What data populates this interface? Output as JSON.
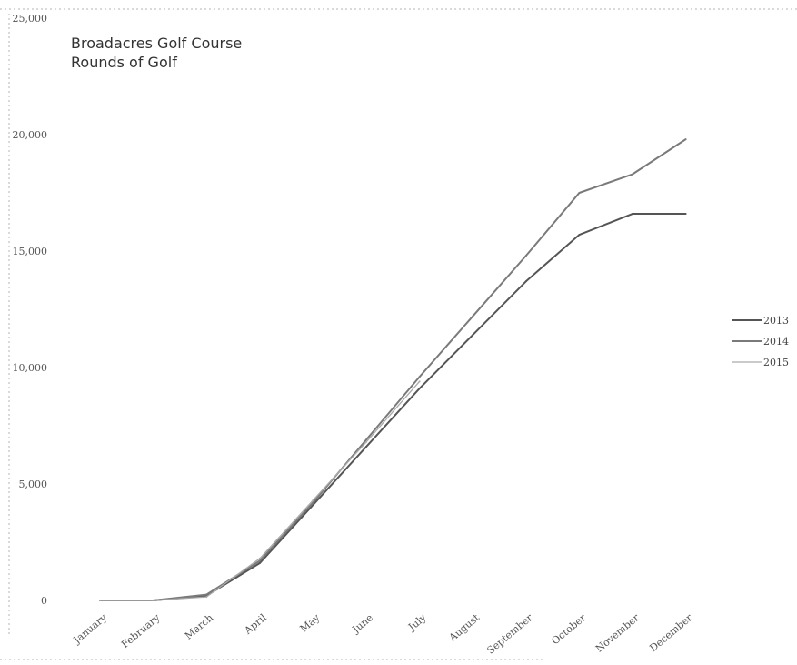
{
  "chart_data": {
    "type": "line",
    "title": "Broadacres Golf Course",
    "subtitle": "Rounds of Golf",
    "xlabel": "",
    "ylabel": "",
    "categories": [
      "January",
      "February",
      "March",
      "April",
      "May",
      "June",
      "July",
      "August",
      "September",
      "October",
      "November",
      "December"
    ],
    "ylim": [
      0,
      25000
    ],
    "yticks": [
      0,
      5000,
      10000,
      15000,
      20000,
      25000
    ],
    "ytick_labels": [
      "0",
      "5,000",
      "10,000",
      "15,000",
      "20,000",
      "25,000"
    ],
    "grid": false,
    "legend_position": "right",
    "series": [
      {
        "name": "2013",
        "values": [
          0,
          0,
          200,
          1600,
          4100,
          6600,
          9100,
          11400,
          13700,
          15700,
          16600,
          16600
        ],
        "color": "#555555"
      },
      {
        "name": "2014",
        "values": [
          0,
          0,
          250,
          1700,
          4200,
          6900,
          9600,
          12200,
          14800,
          17500,
          18300,
          19800
        ],
        "color": "#7a7a7a"
      },
      {
        "name": "2015",
        "values": [
          0,
          0,
          150,
          1800,
          4300,
          6800,
          9400,
          null,
          null,
          null,
          null,
          null
        ],
        "color": "#aaaaaa"
      }
    ]
  }
}
